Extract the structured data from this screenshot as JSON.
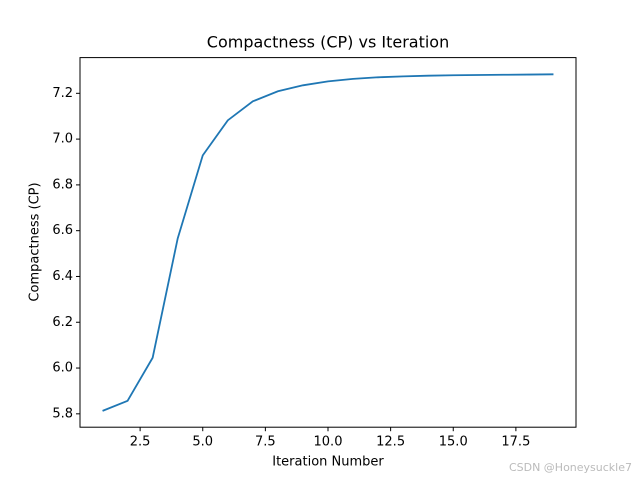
{
  "chart_data": {
    "type": "line",
    "title": "Compactness (CP) vs Iteration",
    "x_label": "Iteration Number",
    "y_label": "Compactness (CP)",
    "x": [
      1,
      2,
      3,
      4,
      5,
      6,
      7,
      8,
      9,
      10,
      11,
      12,
      13,
      14,
      15,
      16,
      17,
      18,
      19
    ],
    "series": [
      {
        "name": "CP",
        "color": "#1f77b4",
        "values": [
          5.813,
          5.857,
          6.045,
          6.566,
          6.929,
          7.082,
          7.165,
          7.209,
          7.235,
          7.252,
          7.263,
          7.27,
          7.274,
          7.277,
          7.279,
          7.28,
          7.281,
          7.282,
          7.283
        ]
      }
    ],
    "xlim": [
      0.1,
      19.9
    ],
    "xticks": [
      2.5,
      {
        "value": 5,
        "label": "5.0"
      },
      7.5,
      {
        "value": 10,
        "label": "10.0"
      },
      12.5,
      {
        "value": 15,
        "label": "15.0"
      },
      17.5
    ],
    "ylim": [
      5.7416,
      7.356
    ],
    "yticks": [
      5.8,
      {
        "value": 6,
        "label": "6.0"
      },
      6.2,
      6.4,
      6.6,
      6.8,
      {
        "value": 7,
        "label": "7.0"
      },
      7.2
    ],
    "grid": false,
    "watermark": "CSDN @Honeysuckle7"
  }
}
